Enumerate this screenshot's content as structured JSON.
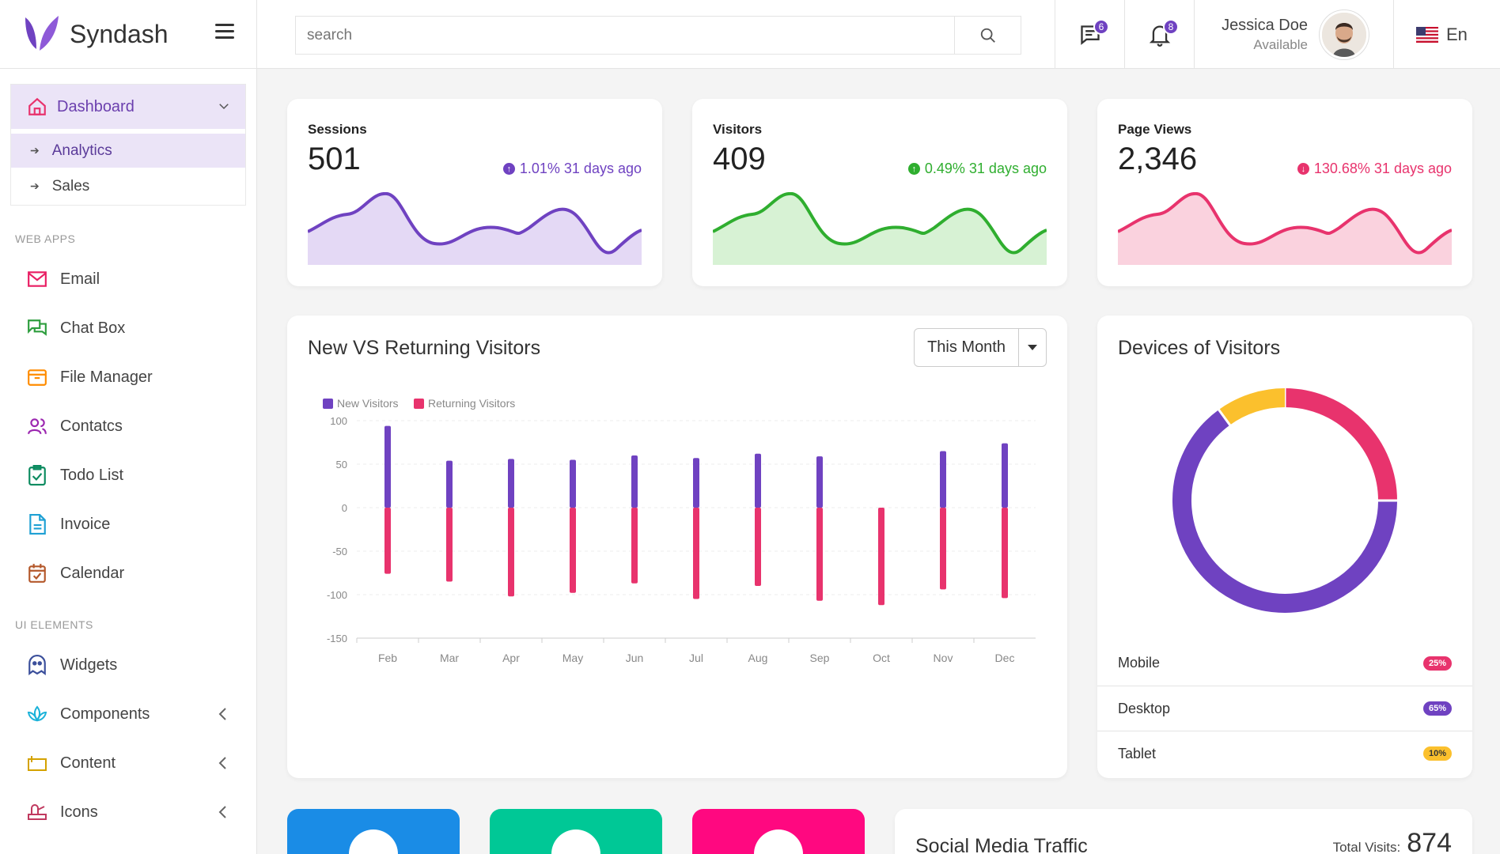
{
  "app": {
    "name": "Syndash"
  },
  "sidebar": {
    "dashboard": {
      "label": "Dashboard",
      "items": [
        "Analytics",
        "Sales"
      ]
    },
    "sections": [
      {
        "title": "WEB APPS",
        "items": [
          "Email",
          "Chat Box",
          "File Manager",
          "Contatcs",
          "Todo List",
          "Invoice",
          "Calendar"
        ]
      },
      {
        "title": "UI ELEMENTS",
        "items": [
          "Widgets",
          "Components",
          "Content",
          "Icons"
        ]
      }
    ],
    "icon_colors": [
      "#e91e63",
      "#2e9e3e",
      "#ff8c00",
      "#9c27b0",
      "#0b8a5f",
      "#1ea0d4",
      "#b4582b",
      "#3b4f9b",
      "#1bb2d9",
      "#d4a200",
      "#c0395f"
    ]
  },
  "topbar": {
    "search_placeholder": "search",
    "messages_count": "6",
    "notifications_count": "8",
    "user_name": "Jessica Doe",
    "user_status": "Available",
    "language": "En"
  },
  "stats": [
    {
      "title": "Sessions",
      "value": "501",
      "change": "1.01% 31 days ago",
      "direction": "up",
      "color": "#6f42c1",
      "fill": "#e4d9f5"
    },
    {
      "title": "Visitors",
      "value": "409",
      "change": "0.49% 31 days ago",
      "direction": "up",
      "color": "#2fae2f",
      "fill": "#d7f2d4"
    },
    {
      "title": "Page Views",
      "value": "2,346",
      "change": "130.68% 31 days ago",
      "direction": "down",
      "color": "#e8336d",
      "fill": "#fad2de"
    }
  ],
  "visitors_chart": {
    "title": "New VS Returning Visitors",
    "period": "This Month"
  },
  "chart_data": [
    {
      "type": "bar",
      "categories": [
        "Feb",
        "Mar",
        "Apr",
        "May",
        "Jun",
        "Jul",
        "Aug",
        "Sep",
        "Oct",
        "Nov",
        "Dec"
      ],
      "series": [
        {
          "name": "New Visitors",
          "color": "#6f42c1",
          "values": [
            94,
            54,
            56,
            55,
            60,
            57,
            62,
            59,
            0,
            65,
            74
          ]
        },
        {
          "name": "Returning Visitors",
          "color": "#e8336d",
          "values": [
            -76,
            -85,
            -102,
            -98,
            -87,
            -105,
            -90,
            -107,
            -112,
            -94,
            -104
          ]
        }
      ],
      "ylim": [
        -150,
        100
      ],
      "yticks": [
        100,
        50,
        0,
        -50,
        -100,
        -150
      ],
      "legend": "top-left",
      "grid": true
    },
    {
      "type": "pie",
      "title": "Devices of Visitors",
      "categories": [
        "Mobile",
        "Desktop",
        "Tablet"
      ],
      "values": [
        25,
        65,
        10
      ],
      "colors": [
        "#e8336d",
        "#6f42c1",
        "#fbc02d"
      ],
      "labels": [
        "25%",
        "65%",
        "10%"
      ]
    }
  ],
  "devices": {
    "title": "Devices of Visitors"
  },
  "social": {
    "title": "Social Media Traffic",
    "total_label": "Total Visits:",
    "total_value": "874"
  },
  "tiles": [
    {
      "color": "#1a8ce6"
    },
    {
      "color": "#00c896"
    },
    {
      "color": "#ff0880"
    }
  ]
}
